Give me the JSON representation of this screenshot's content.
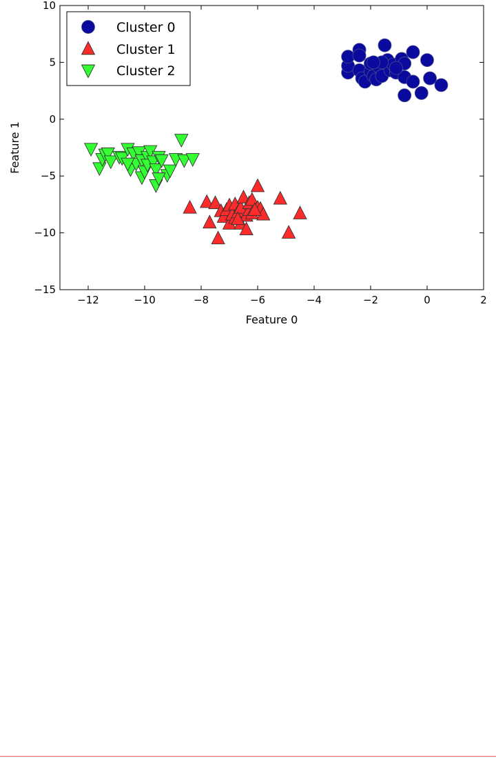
{
  "chart_data": {
    "type": "scatter",
    "title": "",
    "xlabel": "Feature 0",
    "ylabel": "Feature 1",
    "xlim": [
      -13,
      2
    ],
    "ylim": [
      -15,
      10
    ],
    "xticks": [
      -12,
      -10,
      -8,
      -6,
      -4,
      -2,
      0,
      2
    ],
    "yticks": [
      -15,
      -10,
      -5,
      0,
      5,
      10
    ],
    "xtick_labels": [
      "−12",
      "−10",
      "−8",
      "−6",
      "−4",
      "−2",
      "0",
      "2"
    ],
    "ytick_labels": [
      "−15",
      "−10",
      "−5",
      "0",
      "5",
      "10"
    ],
    "grid": false,
    "legend_position": "top-left",
    "series": [
      {
        "name": "Cluster 0",
        "marker": "circle",
        "color": "#0a0a9e",
        "points": [
          [
            -2.8,
            4.1
          ],
          [
            -2.8,
            4.7
          ],
          [
            -2.8,
            5.5
          ],
          [
            -2.4,
            6.1
          ],
          [
            -2.4,
            5.6
          ],
          [
            -2.4,
            4.3
          ],
          [
            -2.3,
            3.6
          ],
          [
            -2.2,
            3.3
          ],
          [
            -2.0,
            4.2
          ],
          [
            -2.0,
            4.9
          ],
          [
            -1.9,
            3.8
          ],
          [
            -1.8,
            3.5
          ],
          [
            -1.7,
            4.6
          ],
          [
            -1.6,
            3.8
          ],
          [
            -1.5,
            6.5
          ],
          [
            -1.4,
            5.2
          ],
          [
            -1.3,
            4.3
          ],
          [
            -1.2,
            4.8
          ],
          [
            -1.1,
            4.1
          ],
          [
            -0.9,
            5.3
          ],
          [
            -0.8,
            4.9
          ],
          [
            -0.8,
            3.7
          ],
          [
            -0.8,
            2.1
          ],
          [
            -0.5,
            3.3
          ],
          [
            -0.5,
            5.9
          ],
          [
            -0.2,
            2.3
          ],
          [
            0.0,
            5.2
          ],
          [
            0.1,
            3.6
          ],
          [
            0.5,
            3.0
          ],
          [
            -1.6,
            5.0
          ],
          [
            -1.1,
            4.5
          ],
          [
            -1.9,
            5.0
          ]
        ]
      },
      {
        "name": "Cluster 1",
        "marker": "triangle-up",
        "color": "#ff2a2a",
        "points": [
          [
            -8.4,
            -7.8
          ],
          [
            -7.8,
            -7.3
          ],
          [
            -7.7,
            -9.1
          ],
          [
            -7.5,
            -7.4
          ],
          [
            -7.4,
            -10.5
          ],
          [
            -7.3,
            -8.1
          ],
          [
            -7.2,
            -8.6
          ],
          [
            -7.1,
            -8.0
          ],
          [
            -7.0,
            -9.2
          ],
          [
            -7.0,
            -7.6
          ],
          [
            -6.9,
            -8.4
          ],
          [
            -6.8,
            -7.5
          ],
          [
            -6.8,
            -8.7
          ],
          [
            -6.7,
            -8.2
          ],
          [
            -6.6,
            -9.2
          ],
          [
            -6.6,
            -7.8
          ],
          [
            -6.5,
            -6.9
          ],
          [
            -6.4,
            -8.5
          ],
          [
            -6.4,
            -9.7
          ],
          [
            -6.3,
            -8.0
          ],
          [
            -6.3,
            -7.4
          ],
          [
            -6.2,
            -7.1
          ],
          [
            -6.2,
            -8.3
          ],
          [
            -6.0,
            -7.8
          ],
          [
            -6.0,
            -5.9
          ],
          [
            -5.9,
            -7.9
          ],
          [
            -5.8,
            -8.4
          ],
          [
            -5.2,
            -7.0
          ],
          [
            -4.9,
            -10.0
          ],
          [
            -4.5,
            -8.3
          ],
          [
            -6.1,
            -8.0
          ],
          [
            -6.7,
            -8.8
          ]
        ]
      },
      {
        "name": "Cluster 2",
        "marker": "triangle-down",
        "color": "#33ff33",
        "points": [
          [
            -11.9,
            -2.6
          ],
          [
            -11.6,
            -4.3
          ],
          [
            -11.5,
            -3.5
          ],
          [
            -11.4,
            -3.1
          ],
          [
            -11.3,
            -3.0
          ],
          [
            -11.2,
            -3.7
          ],
          [
            -10.9,
            -3.3
          ],
          [
            -10.8,
            -3.4
          ],
          [
            -10.6,
            -2.6
          ],
          [
            -10.5,
            -4.4
          ],
          [
            -10.4,
            -3.0
          ],
          [
            -10.3,
            -3.9
          ],
          [
            -10.2,
            -2.9
          ],
          [
            -10.1,
            -3.6
          ],
          [
            -10.1,
            -5.1
          ],
          [
            -10.0,
            -4.6
          ],
          [
            -9.9,
            -3.3
          ],
          [
            -9.9,
            -4.0
          ],
          [
            -9.8,
            -2.8
          ],
          [
            -9.7,
            -3.7
          ],
          [
            -9.6,
            -4.4
          ],
          [
            -9.6,
            -5.8
          ],
          [
            -9.5,
            -3.3
          ],
          [
            -9.4,
            -3.6
          ],
          [
            -9.2,
            -4.9
          ],
          [
            -9.1,
            -4.5
          ],
          [
            -8.9,
            -3.5
          ],
          [
            -8.7,
            -1.8
          ],
          [
            -8.6,
            -3.6
          ],
          [
            -8.3,
            -3.5
          ],
          [
            -9.5,
            -5.2
          ],
          [
            -10.6,
            -3.9
          ]
        ]
      }
    ]
  }
}
